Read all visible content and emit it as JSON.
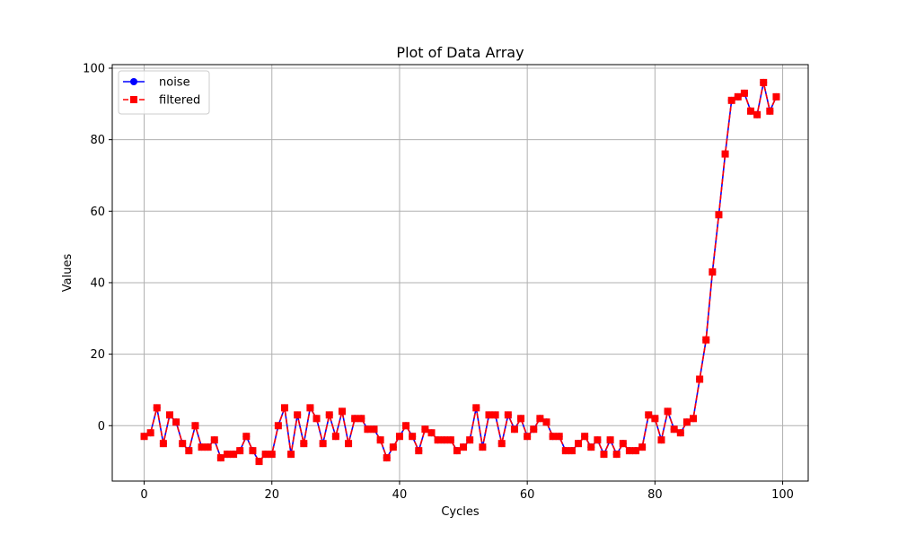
{
  "chart_data": {
    "type": "line",
    "title": "Plot of Data Array",
    "xlabel": "Cycles",
    "ylabel": "Values",
    "xlim": [
      -5,
      104
    ],
    "ylim": [
      -15.5,
      101
    ],
    "xticks": [
      0,
      20,
      40,
      60,
      80,
      100
    ],
    "yticks": [
      0,
      20,
      40,
      60,
      80,
      100
    ],
    "grid": true,
    "legend_position": "upper-left",
    "x": [
      0,
      1,
      2,
      3,
      4,
      5,
      6,
      7,
      8,
      9,
      10,
      11,
      12,
      13,
      14,
      15,
      16,
      17,
      18,
      19,
      20,
      21,
      22,
      23,
      24,
      25,
      26,
      27,
      28,
      29,
      30,
      31,
      32,
      33,
      34,
      35,
      36,
      37,
      38,
      39,
      40,
      41,
      42,
      43,
      44,
      45,
      46,
      47,
      48,
      49,
      50,
      51,
      52,
      53,
      54,
      55,
      56,
      57,
      58,
      59,
      60,
      61,
      62,
      63,
      64,
      65,
      66,
      67,
      68,
      69,
      70,
      71,
      72,
      73,
      74,
      75,
      76,
      77,
      78,
      79,
      80,
      81,
      82,
      83,
      84,
      85,
      86,
      87,
      88,
      89,
      90,
      91,
      92,
      93,
      94,
      95,
      96,
      97,
      98,
      99
    ],
    "series": [
      {
        "name": "noise",
        "color": "#0000ff",
        "linestyle": "solid",
        "marker": "circle",
        "values": [
          -3,
          -2,
          5,
          -5,
          3,
          1,
          -5,
          -7,
          0,
          -6,
          -6,
          -4,
          -9,
          -8,
          -8,
          -7,
          -3,
          -7,
          -10,
          -8,
          -8,
          0,
          5,
          -8,
          3,
          -5,
          5,
          2,
          -5,
          3,
          -3,
          4,
          -5,
          2,
          2,
          -1,
          -1,
          -4,
          -9,
          -6,
          -3,
          0,
          -3,
          -7,
          -1,
          -2,
          -4,
          -4,
          -4,
          -7,
          -6,
          -4,
          5,
          -6,
          3,
          3,
          -5,
          3,
          -1,
          2,
          -3,
          -1,
          2,
          1,
          -3,
          -3,
          -7,
          -7,
          -5,
          -3,
          -6,
          -4,
          -8,
          -4,
          -8,
          -5,
          -7,
          -7,
          -6,
          3,
          2,
          -4,
          4,
          -1,
          -2,
          1,
          2,
          13,
          24,
          43,
          59,
          76,
          91,
          92,
          93,
          88,
          87,
          96,
          88,
          92
        ]
      },
      {
        "name": "filtered",
        "color": "#ff0000",
        "linestyle": "dashed",
        "marker": "square",
        "values": [
          -3,
          -2,
          5,
          -5,
          3,
          1,
          -5,
          -7,
          0,
          -6,
          -6,
          -4,
          -9,
          -8,
          -8,
          -7,
          -3,
          -7,
          -10,
          -8,
          -8,
          0,
          5,
          -8,
          3,
          -5,
          5,
          2,
          -5,
          3,
          -3,
          4,
          -5,
          2,
          2,
          -1,
          -1,
          -4,
          -9,
          -6,
          -3,
          0,
          -3,
          -7,
          -1,
          -2,
          -4,
          -4,
          -4,
          -7,
          -6,
          -4,
          5,
          -6,
          3,
          3,
          -5,
          3,
          -1,
          2,
          -3,
          -1,
          2,
          1,
          -3,
          -3,
          -7,
          -7,
          -5,
          -3,
          -6,
          -4,
          -8,
          -4,
          -8,
          -5,
          -7,
          -7,
          -6,
          3,
          2,
          -4,
          4,
          -1,
          -2,
          1,
          2,
          13,
          24,
          43,
          59,
          76,
          91,
          92,
          93,
          88,
          87,
          96,
          88,
          92
        ]
      }
    ]
  }
}
